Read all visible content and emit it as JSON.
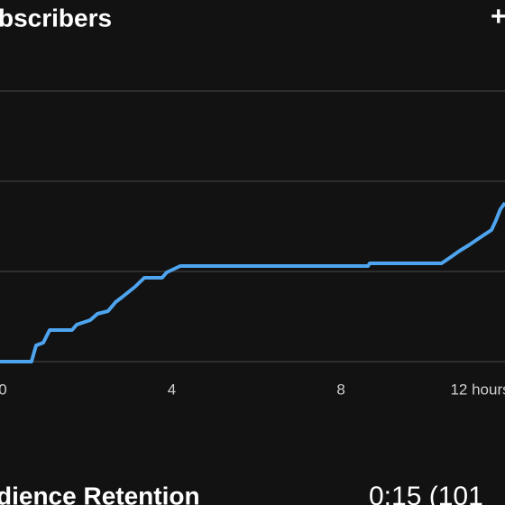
{
  "header": {
    "title": "bscribers",
    "action": "+"
  },
  "chart_data": {
    "type": "line",
    "x": [
      -0.064,
      0.68,
      0.79,
      0.96,
      1.11,
      1.64,
      1.75,
      2.07,
      2.24,
      2.49,
      2.67,
      2.81,
      3.13,
      3.35,
      3.77,
      3.88,
      4.2,
      8.64,
      8.68,
      10.38,
      10.6,
      10.81,
      11.02,
      11.24,
      11.56,
      11.66,
      11.77,
      11.88
    ],
    "series": [
      {
        "color": "#4ea4ee",
        "values": [
          0,
          0,
          0.18,
          0.21,
          0.35,
          0.35,
          0.41,
          0.46,
          0.53,
          0.56,
          0.66,
          0.71,
          0.83,
          0.93,
          0.93,
          0.99,
          1.06,
          1.06,
          1.09,
          1.09,
          1.16,
          1.23,
          1.29,
          1.36,
          1.46,
          1.56,
          1.69,
          1.76
        ]
      }
    ],
    "xlim": [
      -0.064,
      11.88
    ],
    "xticks": [
      0,
      4,
      8,
      {
        "value": 12,
        "label": "12 hours"
      }
    ],
    "ylim": [
      0,
      3
    ],
    "yticks": [
      0,
      1,
      2,
      3
    ],
    "grid": true
  },
  "footer": {
    "label": "dience Retention",
    "value": "0:15 (101"
  }
}
